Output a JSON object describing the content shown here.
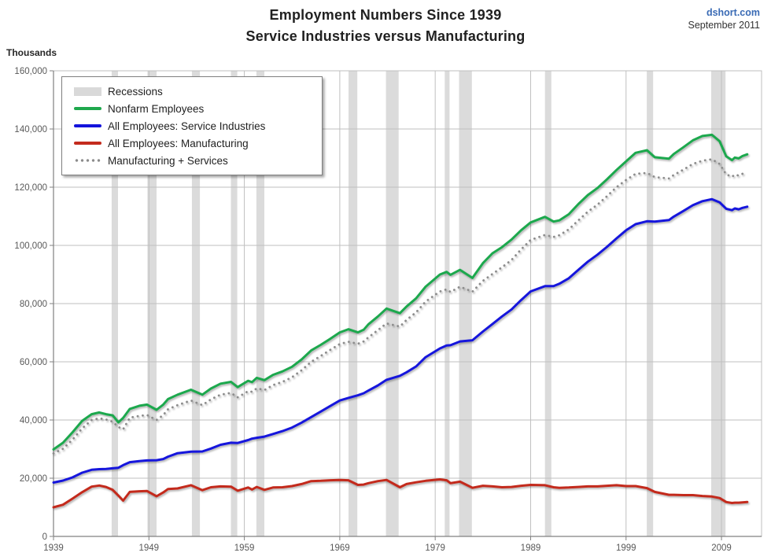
{
  "header": {
    "title_line1": "Employment Numbers Since 1939",
    "title_line2": "Service Industries versus Manufacturing",
    "source": "dshort.com",
    "date": "September 2011"
  },
  "chart_data": {
    "type": "line",
    "title": "Employment Numbers Since 1939",
    "subtitle": "Service Industries versus Manufacturing",
    "y_axis_label": "Thousands",
    "units": "thousands of employees",
    "xlim": [
      1939,
      2013.2
    ],
    "ylim": [
      0,
      160000
    ],
    "grid": true,
    "legend_position": "top-left",
    "x_ticks": [
      1939,
      1949,
      1959,
      1969,
      1979,
      1989,
      1999,
      2009
    ],
    "x_tick_labels": [
      "1939",
      "1949",
      "1959",
      "1969",
      "1979",
      "1989",
      "1999",
      "2009"
    ],
    "y_ticks": [
      0,
      20000,
      40000,
      60000,
      80000,
      100000,
      120000,
      140000,
      160000
    ],
    "y_tick_labels": [
      "0",
      "20,000",
      "40,000",
      "60,000",
      "80,000",
      "100,000",
      "120,000",
      "140,000",
      "160,000"
    ],
    "recessions": [
      [
        1945.09,
        1945.76
      ],
      [
        1948.84,
        1949.8
      ],
      [
        1953.5,
        1954.34
      ],
      [
        1957.59,
        1958.26
      ],
      [
        1960.26,
        1961.09
      ],
      [
        1969.92,
        1970.84
      ],
      [
        1973.84,
        1975.17
      ],
      [
        1980.0,
        1980.5
      ],
      [
        1981.5,
        1982.84
      ],
      [
        1990.5,
        1991.17
      ],
      [
        2001.17,
        2001.84
      ],
      [
        2007.92,
        2009.42
      ]
    ],
    "legend_items": [
      {
        "label": "Recessions",
        "swatch": "band",
        "color": "#D9D9D9"
      },
      {
        "label": "Nonfarm Employees",
        "swatch": "line",
        "color": "#1FA84D"
      },
      {
        "label": "All Employees: Service Industries",
        "swatch": "line",
        "color": "#1414DC"
      },
      {
        "label": "All Employees: Manufacturing",
        "swatch": "line",
        "color": "#C32B1D"
      },
      {
        "label": "Manufacturing + Services",
        "swatch": "dotted",
        "color": "#8C8C8C"
      }
    ],
    "x": [
      1939,
      1940,
      1941,
      1942,
      1943,
      1943.8,
      1944.5,
      1945.2,
      1945.8,
      1946.3,
      1947,
      1948,
      1948.8,
      1949.8,
      1950.5,
      1951,
      1952,
      1953.4,
      1954.6,
      1955.5,
      1956.5,
      1957.6,
      1958.3,
      1959.4,
      1959.8,
      1960.3,
      1961.1,
      1962,
      1963,
      1964,
      1965,
      1966,
      1967,
      1968,
      1969,
      1969.9,
      1970.9,
      1971.5,
      1972,
      1973,
      1973.9,
      1975.3,
      1976,
      1977,
      1978,
      1979.5,
      1980.2,
      1980.6,
      1981.6,
      1982.9,
      1984,
      1985,
      1986,
      1987,
      1988,
      1989,
      1990.5,
      1991.4,
      1992,
      1993,
      1994,
      1995,
      1996,
      1997,
      1998,
      1999,
      2000,
      2001.2,
      2002,
      2003.5,
      2004,
      2005,
      2006,
      2007,
      2008,
      2008.8,
      2009.5,
      2010.1,
      2010.4,
      2010.8,
      2011.2,
      2011.7
    ],
    "series": [
      {
        "name": "Nonfarm Employees",
        "color": "#1FA84D",
        "style": "solid",
        "values": [
          29900,
          32200,
          35800,
          39700,
          42000,
          42600,
          42000,
          41600,
          39200,
          40700,
          43800,
          44900,
          45300,
          43500,
          45300,
          47200,
          48700,
          50400,
          48700,
          50800,
          52500,
          53100,
          51300,
          53500,
          53000,
          54500,
          53700,
          55500,
          56700,
          58300,
          60800,
          63900,
          65800,
          67900,
          70100,
          71200,
          70100,
          71000,
          72900,
          75600,
          78300,
          76700,
          79000,
          81800,
          85800,
          90000,
          90900,
          89900,
          91600,
          88800,
          93900,
          97300,
          99400,
          102000,
          105200,
          107900,
          109800,
          108200,
          108600,
          110700,
          114200,
          117300,
          119700,
          122700,
          125900,
          128900,
          131800,
          132700,
          130300,
          129800,
          131400,
          133700,
          136100,
          137600,
          138000,
          135800,
          130600,
          129300,
          130200,
          129900,
          130700,
          131300
        ]
      },
      {
        "name": "All Employees: Service Industries",
        "color": "#1414DC",
        "style": "solid",
        "values": [
          18500,
          19200,
          20300,
          21900,
          22900,
          23100,
          23200,
          23400,
          23600,
          24500,
          25500,
          25900,
          26100,
          26200,
          26600,
          27400,
          28600,
          29100,
          29200,
          30200,
          31500,
          32200,
          32100,
          33100,
          33600,
          33900,
          34300,
          35200,
          36200,
          37400,
          39100,
          41000,
          42900,
          44800,
          46700,
          47600,
          48500,
          49200,
          50100,
          51900,
          53800,
          55200,
          56400,
          58400,
          61600,
          64600,
          65600,
          65700,
          67000,
          67400,
          70400,
          73000,
          75600,
          78000,
          81200,
          84200,
          86000,
          86000,
          86800,
          88700,
          91600,
          94400,
          96800,
          99500,
          102400,
          105200,
          107300,
          108300,
          108200,
          108700,
          109900,
          111800,
          113800,
          115200,
          115900,
          114800,
          112600,
          112100,
          112700,
          112400,
          112900,
          113300
        ]
      },
      {
        "name": "All Employees: Manufacturing",
        "color": "#C32B1D",
        "style": "solid",
        "values": [
          10000,
          10900,
          13000,
          15200,
          17100,
          17500,
          17000,
          16000,
          14000,
          12300,
          15300,
          15500,
          15600,
          13800,
          15100,
          16300,
          16500,
          17600,
          15900,
          16900,
          17200,
          17100,
          15700,
          16800,
          16100,
          17000,
          16000,
          16800,
          16900,
          17300,
          18000,
          19000,
          19100,
          19300,
          19400,
          19300,
          17700,
          17800,
          18300,
          19000,
          19400,
          16900,
          18000,
          18600,
          19100,
          19600,
          19300,
          18300,
          18800,
          16700,
          17400,
          17200,
          16900,
          17000,
          17400,
          17700,
          17600,
          16900,
          16700,
          16800,
          17000,
          17200,
          17200,
          17400,
          17600,
          17300,
          17300,
          16600,
          15300,
          14300,
          14300,
          14200,
          14200,
          13900,
          13700,
          13200,
          11800,
          11500,
          11600,
          11600,
          11700,
          11800
        ]
      },
      {
        "name": "Manufacturing + Services",
        "color": "#8C8C8C",
        "style": "dotted",
        "values": [
          28500,
          30100,
          33300,
          37100,
          40000,
          40600,
          40200,
          39400,
          37600,
          36800,
          40800,
          41400,
          41700,
          40000,
          41700,
          43700,
          45100,
          46700,
          45100,
          47100,
          48700,
          49300,
          47800,
          49900,
          49700,
          50900,
          50300,
          52000,
          53100,
          54700,
          57100,
          60000,
          62000,
          64100,
          66100,
          66900,
          66200,
          67000,
          68400,
          70900,
          73200,
          72100,
          74400,
          77000,
          80700,
          84200,
          84900,
          84000,
          85800,
          84100,
          87800,
          90200,
          92500,
          95000,
          98600,
          101900,
          103600,
          102900,
          103500,
          105500,
          108600,
          111600,
          114000,
          116900,
          120000,
          122500,
          124600,
          124900,
          123500,
          123000,
          124200,
          126000,
          128000,
          129100,
          129600,
          128000,
          124400,
          123600,
          124300,
          124000,
          124600,
          125100
        ]
      }
    ],
    "colors": {
      "recession_band": "#DBDBDB",
      "grid": "#BFBFBF",
      "axis": "#808080",
      "tick_label": "#595959"
    }
  }
}
